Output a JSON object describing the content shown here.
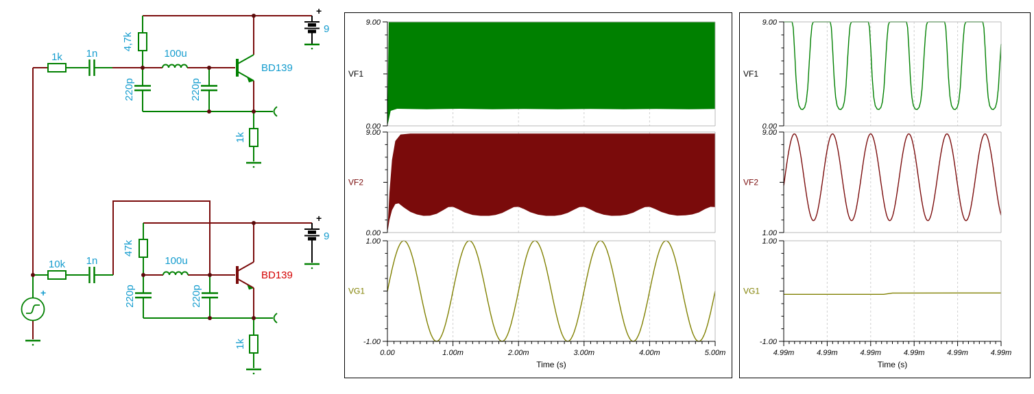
{
  "schematic": {
    "colors": {
      "wire": "#7a0b0b",
      "component": "#008000",
      "label": "#149cce",
      "transistor2_label": "#d40000",
      "battery": "#000000"
    },
    "source_plus": "+",
    "top": {
      "r_in": "1k",
      "c_in": "1n",
      "r_bias": "4,7k",
      "inductor": "100u",
      "c_left": "220p",
      "c_right": "220p",
      "transistor": "BD139",
      "battery_plus": "+",
      "battery_v": "9",
      "r_emitter": "1k"
    },
    "bottom": {
      "r_in": "10k",
      "c_in": "1n",
      "r_bias": "47k",
      "inductor": "100u",
      "c_left": "220p",
      "c_right": "220p",
      "transistor": "BD139",
      "battery_plus": "+",
      "battery_v": "9",
      "r_emitter": "1k"
    }
  },
  "chart_data": [
    {
      "id": "transient-full",
      "type": "line",
      "xlabel": "Time (s)",
      "x_range": [
        0,
        5
      ],
      "x_minor_per_div": 10,
      "x_ticks": [
        "0.00",
        "1.00m",
        "2.00m",
        "3.00m",
        "4.00m",
        "5.00m"
      ],
      "grid": "dashed-vertical",
      "legend_position": "left-labels",
      "subplots": [
        {
          "label": "VF1",
          "label_color": "#000000",
          "color": "#008000",
          "ylim": [
            0,
            9
          ],
          "yticks": [
            "9.00",
            "0.00"
          ],
          "series": {
            "kind": "envelope",
            "top": [
              [
                0,
                0
              ],
              [
                0.02,
                9
              ],
              [
                5,
                9
              ]
            ],
            "bottom": [
              [
                0,
                0
              ],
              [
                0.05,
                1.3
              ],
              [
                0.15,
                1.48
              ],
              [
                0.6,
                1.44
              ],
              [
                1.1,
                1.48
              ],
              [
                1.6,
                1.43
              ],
              [
                2.1,
                1.47
              ],
              [
                2.6,
                1.44
              ],
              [
                3.1,
                1.47
              ],
              [
                3.6,
                1.43
              ],
              [
                4.1,
                1.47
              ],
              [
                4.6,
                1.44
              ],
              [
                5,
                1.46
              ]
            ]
          }
        },
        {
          "label": "VF2",
          "label_color": "#7a0b0b",
          "color": "#7a0b0b",
          "ylim": [
            0,
            9
          ],
          "yticks": [
            "9.00",
            "0.00"
          ],
          "series": {
            "kind": "envelope",
            "top": [
              [
                0,
                0
              ],
              [
                0.03,
                3.5
              ],
              [
                0.07,
                6.5
              ],
              [
                0.12,
                8.2
              ],
              [
                0.2,
                8.78
              ],
              [
                0.35,
                8.86
              ],
              [
                5,
                8.86
              ]
            ],
            "bottom": [
              [
                0,
                0
              ],
              [
                0.03,
                1.1
              ],
              [
                0.07,
                2.0
              ],
              [
                0.12,
                2.55
              ],
              [
                0.17,
                2.62
              ],
              [
                0.25,
                2.25
              ],
              [
                0.35,
                1.85
              ],
              [
                0.45,
                1.62
              ],
              [
                0.55,
                1.5
              ],
              [
                0.65,
                1.52
              ],
              [
                0.75,
                1.68
              ],
              [
                0.85,
                2.0
              ],
              [
                0.93,
                2.28
              ],
              [
                1.0,
                2.3
              ],
              [
                1.08,
                2.1
              ],
              [
                1.18,
                1.8
              ],
              [
                1.3,
                1.58
              ],
              [
                1.42,
                1.5
              ],
              [
                1.55,
                1.5
              ],
              [
                1.65,
                1.58
              ],
              [
                1.75,
                1.75
              ],
              [
                1.85,
                2.05
              ],
              [
                1.93,
                2.28
              ],
              [
                2.0,
                2.3
              ],
              [
                2.08,
                2.12
              ],
              [
                2.18,
                1.82
              ],
              [
                2.3,
                1.6
              ],
              [
                2.42,
                1.5
              ],
              [
                2.55,
                1.5
              ],
              [
                2.65,
                1.58
              ],
              [
                2.75,
                1.76
              ],
              [
                2.85,
                2.06
              ],
              [
                2.93,
                2.28
              ],
              [
                3.0,
                2.3
              ],
              [
                3.08,
                2.12
              ],
              [
                3.18,
                1.82
              ],
              [
                3.3,
                1.6
              ],
              [
                3.42,
                1.5
              ],
              [
                3.55,
                1.52
              ],
              [
                3.65,
                1.6
              ],
              [
                3.75,
                1.78
              ],
              [
                3.85,
                2.08
              ],
              [
                3.93,
                2.28
              ],
              [
                4.0,
                2.3
              ],
              [
                4.08,
                2.12
              ],
              [
                4.18,
                1.84
              ],
              [
                4.3,
                1.62
              ],
              [
                4.42,
                1.52
              ],
              [
                4.55,
                1.54
              ],
              [
                4.65,
                1.62
              ],
              [
                4.75,
                1.8
              ],
              [
                4.85,
                2.12
              ],
              [
                4.93,
                2.3
              ],
              [
                5.0,
                2.28
              ]
            ]
          }
        },
        {
          "label": "VG1",
          "label_color": "#808000",
          "color": "#808000",
          "ylim": [
            -1,
            1
          ],
          "yticks": [
            "1.00",
            "-1.00"
          ],
          "series": {
            "kind": "sine",
            "mid": 0,
            "amplitude": 1,
            "cycles": 5,
            "phase": 0
          }
        }
      ]
    },
    {
      "id": "transient-zoom",
      "type": "line",
      "xlabel": "Time (s)",
      "x_range": [
        0,
        1
      ],
      "x_minor_per_div": 8,
      "x_ticks": [
        "4.99m",
        "4.99m",
        "4.99m",
        "4.99m",
        "4.99m",
        "4.99m"
      ],
      "grid": "dashed-vertical",
      "legend_position": "left-labels",
      "subplots": [
        {
          "label": "VF1",
          "label_color": "#000000",
          "color": "#008000",
          "ylim": [
            0,
            9
          ],
          "yticks": [
            "9.00",
            "0.00"
          ],
          "series": {
            "kind": "cyclic",
            "cycles": 5.7,
            "phase": 0,
            "shape": [
              [
                0,
                9
              ],
              [
                0.22,
                9
              ],
              [
                0.25,
                8.5
              ],
              [
                0.28,
                6.8
              ],
              [
                0.32,
                4.2
              ],
              [
                0.36,
                2.5
              ],
              [
                0.4,
                1.75
              ],
              [
                0.45,
                1.45
              ],
              [
                0.5,
                1.42
              ],
              [
                0.55,
                1.6
              ],
              [
                0.59,
                2.1
              ],
              [
                0.63,
                3.3
              ],
              [
                0.67,
                5.5
              ],
              [
                0.71,
                7.6
              ],
              [
                0.74,
                8.7
              ],
              [
                0.77,
                8.97
              ],
              [
                0.8,
                9
              ],
              [
                1,
                9
              ]
            ]
          }
        },
        {
          "label": "VF2",
          "label_color": "#7a0b0b",
          "color": "#7a0b0b",
          "ylim": [
            1,
            9
          ],
          "yticks": [
            "9.00",
            "1.00"
          ],
          "series": {
            "kind": "sine",
            "mid": 5.4,
            "amplitude": 3.45,
            "cycles": 5.7,
            "phase": -0.03
          }
        },
        {
          "label": "VG1",
          "label_color": "#808000",
          "color": "#808000",
          "ylim": [
            -1,
            1
          ],
          "yticks": [
            "1.00",
            "-1.00"
          ],
          "series": {
            "kind": "segments",
            "points": [
              [
                0,
                -0.065
              ],
              [
                0.46,
                -0.065
              ],
              [
                0.5,
                -0.04
              ],
              [
                1,
                -0.038
              ]
            ]
          }
        }
      ]
    }
  ]
}
